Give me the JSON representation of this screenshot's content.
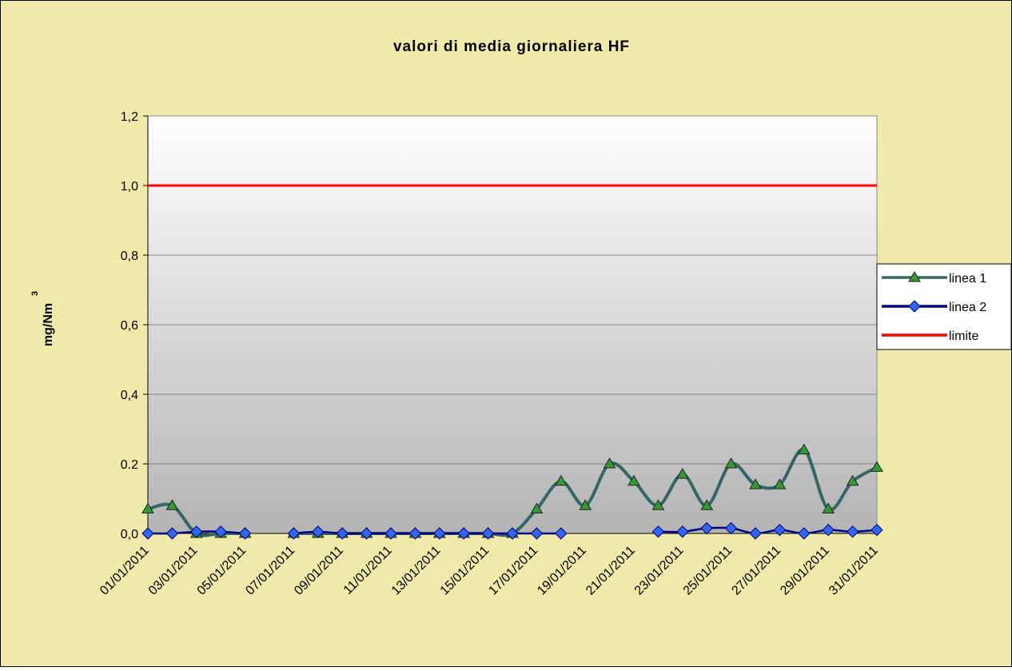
{
  "chart_data": {
    "type": "line",
    "title": "valori di media giornaliera  HF",
    "y_label": "mg/Nm",
    "y_label_sup": "3",
    "categories": [
      "01/01/2011",
      null,
      "03/01/2011",
      null,
      "05/01/2011",
      null,
      "07/01/2011",
      null,
      "09/01/2011",
      null,
      "11/01/2011",
      null,
      "13/01/2011",
      null,
      "15/01/2011",
      null,
      "17/01/2011",
      null,
      "19/01/2011",
      null,
      "21/01/2011",
      null,
      "23/01/2011",
      null,
      "25/01/2011",
      null,
      "27/01/2011",
      null,
      "29/01/2011",
      null,
      "31/01/2011"
    ],
    "series": [
      {
        "name": "linea 1",
        "color": "#336666",
        "marker": "triangle",
        "marker_color": "#339933",
        "smooth": true,
        "values": [
          0.07,
          0.08,
          0,
          0,
          0,
          null,
          0,
          0,
          0,
          0,
          0,
          0,
          0,
          0,
          0,
          0,
          0.07,
          0.15,
          0.08,
          0.2,
          0.15,
          0.08,
          0.17,
          0.08,
          0.2,
          0.14,
          0.14,
          0.24,
          0.07,
          0.15,
          0.19
        ]
      },
      {
        "name": "linea 2",
        "color": "#000080",
        "marker": "diamond",
        "marker_color": "#3366ff",
        "smooth": true,
        "values": [
          0,
          0,
          0.005,
          0.005,
          0,
          null,
          0,
          0.005,
          0,
          0,
          0,
          0,
          0,
          0,
          0,
          0,
          0,
          0,
          null,
          null,
          null,
          0.005,
          0.005,
          0.015,
          0.015,
          0,
          0.01,
          0,
          0.01,
          0.005,
          0.01
        ]
      },
      {
        "name": "limite",
        "color": "#ff0000",
        "marker": "none",
        "smooth": false,
        "values": [
          1,
          1,
          1,
          1,
          1,
          1,
          1,
          1,
          1,
          1,
          1,
          1,
          1,
          1,
          1,
          1,
          1,
          1,
          1,
          1,
          1,
          1,
          1,
          1,
          1,
          1,
          1,
          1,
          1,
          1,
          1
        ]
      }
    ],
    "ylim": [
      0,
      1.2
    ],
    "yticks": [
      {
        "value": 0,
        "label": "0,0"
      },
      {
        "value": 0.2,
        "label": "0.2"
      },
      {
        "value": 0.4,
        "label": "0,4"
      },
      {
        "value": 0.6,
        "label": "0,6"
      },
      {
        "value": 0.8,
        "label": "0,8"
      },
      {
        "value": 1,
        "label": "1,0"
      },
      {
        "value": 1.2,
        "label": "1,2"
      }
    ],
    "grid": true,
    "legend": "right"
  }
}
